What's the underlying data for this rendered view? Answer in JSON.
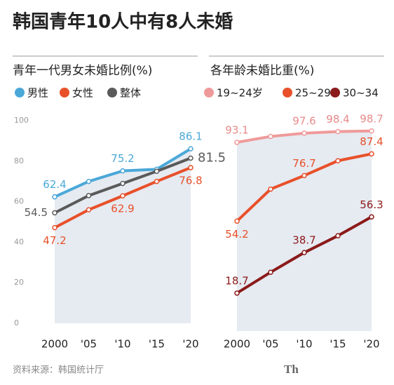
{
  "title": "韩国青年10人中有8人未婚",
  "source": "资料来源：韩国统计厅",
  "watermark": "Th",
  "chart_data": [
    {
      "type": "line",
      "title": "青年一代男女未婚比例(%)",
      "categories": [
        "2000",
        "'05",
        "'10",
        "'15",
        "'20"
      ],
      "series": [
        {
          "name": "男性",
          "color": "#4aa8d8",
          "values": [
            62.4,
            70,
            75.2,
            76,
            86.1
          ]
        },
        {
          "name": "女性",
          "color": "#e8502a",
          "values": [
            47.2,
            56,
            62.9,
            70,
            76.8
          ]
        },
        {
          "name": "整体",
          "color": "#5a5a5a",
          "values": [
            54.5,
            63,
            69,
            75,
            81.5
          ]
        }
      ],
      "ylim": [
        0,
        100
      ],
      "yticks": [
        0,
        20,
        40,
        60,
        80,
        100
      ],
      "grid": false
    },
    {
      "type": "line",
      "title": "各年龄未婚比重(%)",
      "categories": [
        "2000",
        "'05",
        "'10",
        "'15",
        "'20"
      ],
      "series": [
        {
          "name": "19~24岁",
          "color": "#ef9a9a",
          "values": [
            93.1,
            96,
            97.6,
            98.4,
            98.7
          ]
        },
        {
          "name": "25~29",
          "color": "#e8502a",
          "values": [
            54.2,
            70,
            76.7,
            84,
            87.4
          ]
        },
        {
          "name": "30~34",
          "color": "#8b1a1a",
          "values": [
            18.7,
            29,
            38.7,
            47,
            56.3
          ]
        }
      ],
      "ylim": [
        0,
        100
      ],
      "grid": false
    }
  ]
}
